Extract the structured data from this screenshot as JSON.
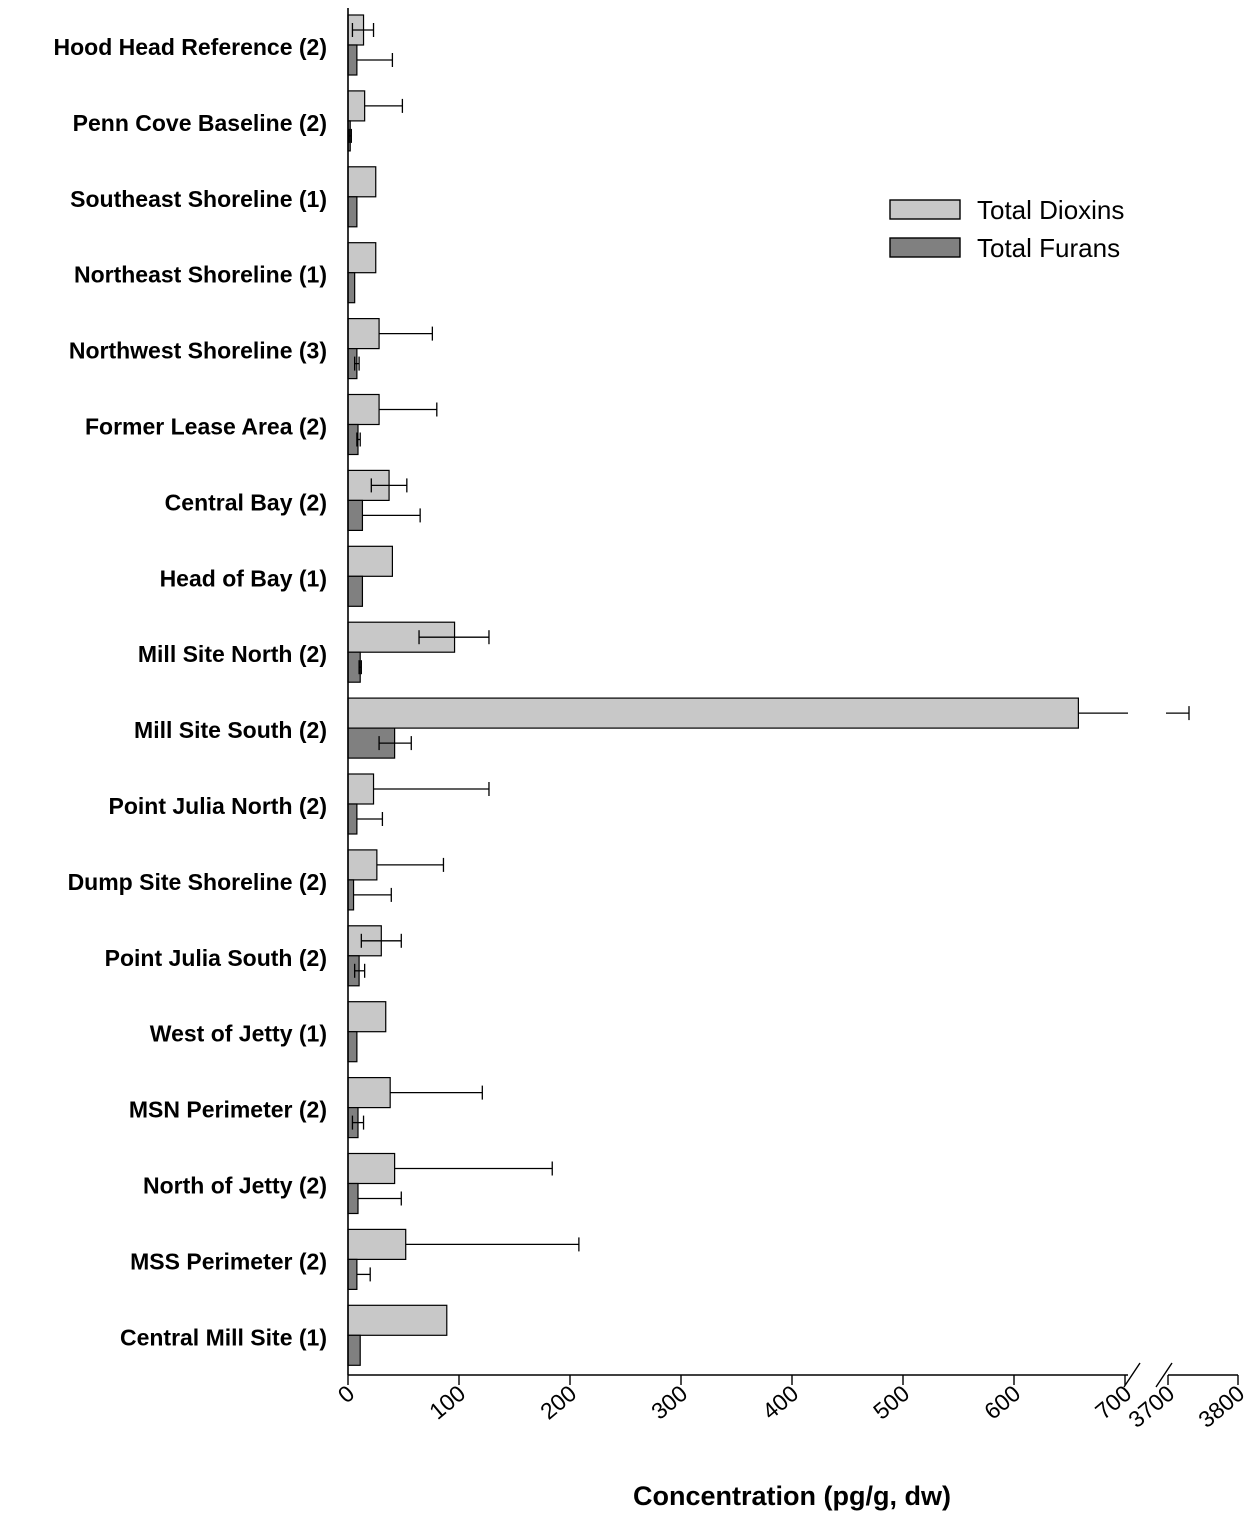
{
  "chart_data": {
    "type": "bar",
    "orientation": "horizontal",
    "xlabel": "Concentration (pg/g, dw)",
    "axis_break": {
      "from": 700,
      "to": 3700
    },
    "xlim_segments": [
      [
        0,
        700
      ],
      [
        3700,
        3800
      ]
    ],
    "xticks": [
      0,
      100,
      200,
      300,
      400,
      500,
      600,
      700,
      3700,
      3800
    ],
    "legend_position": "top-right",
    "grid": false,
    "categories": [
      "Hood Head Reference (2)",
      "Penn Cove Baseline (2)",
      "Southeast Shoreline (1)",
      "Northeast Shoreline (1)",
      "Northwest Shoreline (3)",
      "Former Lease Area (2)",
      "Central Bay (2)",
      "Head of Bay (1)",
      "Mill Site North (2)",
      "Mill Site South (2)",
      "Point Julia North (2)",
      "Dump Site Shoreline (2)",
      "Point Julia South (2)",
      "West of Jetty (1)",
      "MSN Perimeter (2)",
      "North of Jetty (2)",
      "MSS Perimeter (2)",
      "Central Mill Site (1)"
    ],
    "series": [
      {
        "name": "Total Dioxins",
        "color": "#c8c8c8",
        "values": [
          14,
          15,
          25,
          25,
          28,
          28,
          37,
          40,
          96,
          658,
          23,
          26,
          30,
          34,
          38,
          42,
          52,
          89
        ],
        "error_low": [
          4,
          null,
          null,
          null,
          null,
          null,
          21,
          null,
          64,
          null,
          null,
          null,
          12,
          null,
          null,
          null,
          null,
          null
        ],
        "error_high": [
          23,
          49,
          null,
          null,
          76,
          80,
          53,
          null,
          127,
          3730,
          127,
          86,
          48,
          null,
          121,
          184,
          208,
          null
        ]
      },
      {
        "name": "Total Furans",
        "color": "#808080",
        "values": [
          8,
          2,
          8,
          6,
          8,
          9,
          13,
          13,
          11,
          42,
          8,
          5,
          10,
          8,
          9,
          9,
          8,
          11
        ],
        "error_low": [
          null,
          1,
          null,
          null,
          6,
          8,
          null,
          null,
          10,
          28,
          null,
          null,
          6,
          null,
          4,
          null,
          null,
          null
        ],
        "error_high": [
          40,
          3,
          null,
          null,
          10,
          11,
          65,
          null,
          12,
          57,
          31,
          39,
          15,
          null,
          14,
          48,
          20,
          null
        ]
      }
    ]
  }
}
